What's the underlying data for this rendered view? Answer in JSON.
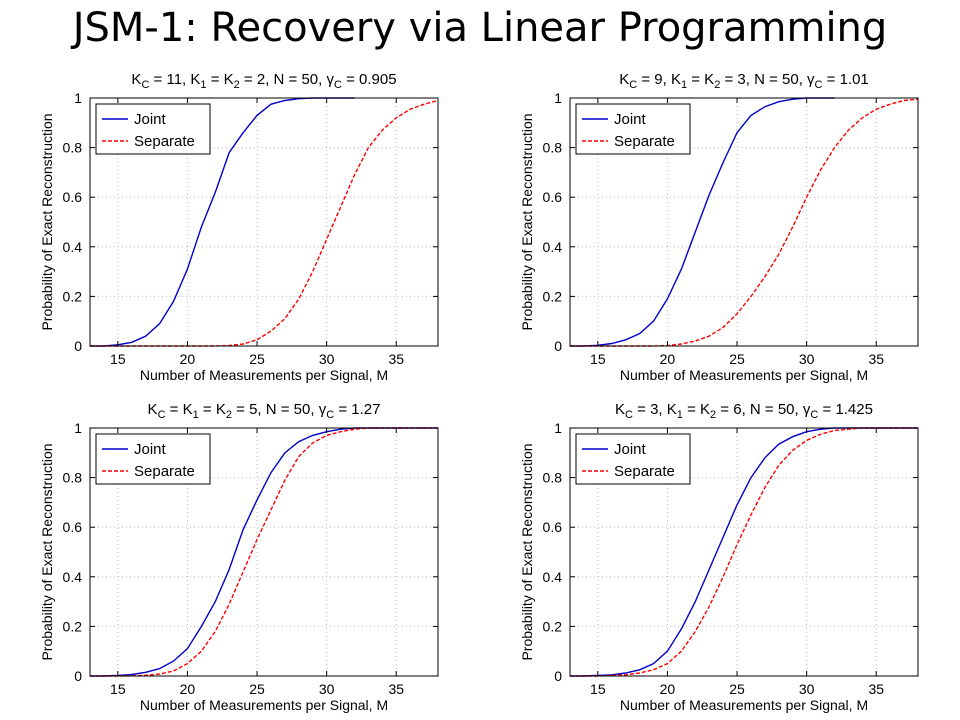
{
  "slide": {
    "title": "JSM-1: Recovery via Linear Programming"
  },
  "colors": {
    "joint": "#0000cc",
    "separate": "#ff0000",
    "grid": "#bbbbbb"
  },
  "chart_data": [
    {
      "type": "line",
      "title": {
        "pre": "K",
        "sub1": "C",
        "mid1": " = 11, K",
        "sub2": "1",
        "mid2": " = K",
        "sub3": "2",
        "mid3": " = 2, N = 50, ",
        "gamma": "γ",
        "sub4": "C",
        "post": " = 0.905"
      },
      "xlabel": "Number of Measurements per Signal, M",
      "ylabel": "Probability of Exact Reconstruction",
      "xlim": [
        13,
        38
      ],
      "ylim": [
        0,
        1
      ],
      "xticks": [
        15,
        20,
        25,
        30,
        35
      ],
      "yticks": [
        0,
        0.2,
        0.4,
        0.6,
        0.8,
        1
      ],
      "grid": true,
      "legend_position": "top-left",
      "series": [
        {
          "name": "Joint",
          "style": "solid",
          "x": [
            13,
            14,
            15,
            16,
            17,
            18,
            19,
            20,
            21,
            22,
            23,
            24,
            25,
            26,
            27,
            28,
            29,
            30,
            31,
            32
          ],
          "y": [
            0,
            0,
            0.005,
            0.015,
            0.04,
            0.09,
            0.18,
            0.31,
            0.48,
            0.62,
            0.78,
            0.86,
            0.93,
            0.975,
            0.99,
            0.997,
            1,
            1,
            1,
            1
          ]
        },
        {
          "name": "Separate",
          "style": "dashed",
          "x": [
            13,
            14,
            15,
            16,
            17,
            18,
            19,
            20,
            21,
            22,
            23,
            24,
            25,
            26,
            27,
            28,
            29,
            30,
            31,
            32,
            33,
            34,
            35,
            36,
            37,
            38
          ],
          "y": [
            0,
            0,
            0,
            0,
            0,
            0,
            0,
            0,
            0,
            0,
            0.002,
            0.008,
            0.025,
            0.06,
            0.11,
            0.19,
            0.3,
            0.43,
            0.56,
            0.69,
            0.8,
            0.87,
            0.92,
            0.955,
            0.975,
            0.99
          ]
        }
      ]
    },
    {
      "type": "line",
      "title": {
        "pre": "K",
        "sub1": "C",
        "mid1": " = 9, K",
        "sub2": "1",
        "mid2": " = K",
        "sub3": "2",
        "mid3": " = 3, N = 50, ",
        "gamma": "γ",
        "sub4": "C",
        "post": " = 1.01"
      },
      "xlabel": "Number of Measurements per Signal, M",
      "ylabel": "Probability of Exact Reconstruction",
      "xlim": [
        13,
        38
      ],
      "ylim": [
        0,
        1
      ],
      "xticks": [
        15,
        20,
        25,
        30,
        35
      ],
      "yticks": [
        0,
        0.2,
        0.4,
        0.6,
        0.8,
        1
      ],
      "grid": true,
      "legend_position": "top-left",
      "series": [
        {
          "name": "Joint",
          "style": "solid",
          "x": [
            13,
            14,
            15,
            16,
            17,
            18,
            19,
            20,
            21,
            22,
            23,
            24,
            25,
            26,
            27,
            28,
            29,
            30,
            31,
            32
          ],
          "y": [
            0,
            0,
            0.003,
            0.01,
            0.025,
            0.05,
            0.1,
            0.19,
            0.31,
            0.46,
            0.61,
            0.74,
            0.86,
            0.93,
            0.965,
            0.985,
            0.995,
            1,
            1,
            1
          ]
        },
        {
          "name": "Separate",
          "style": "dashed",
          "x": [
            13,
            14,
            15,
            16,
            17,
            18,
            19,
            20,
            21,
            22,
            23,
            24,
            25,
            26,
            27,
            28,
            29,
            30,
            31,
            32,
            33,
            34,
            35,
            36,
            37,
            38
          ],
          "y": [
            0,
            0,
            0,
            0,
            0,
            0,
            0,
            0.002,
            0.008,
            0.02,
            0.04,
            0.075,
            0.13,
            0.2,
            0.28,
            0.37,
            0.48,
            0.6,
            0.71,
            0.8,
            0.87,
            0.92,
            0.955,
            0.975,
            0.99,
            0.995
          ]
        }
      ]
    },
    {
      "type": "line",
      "title": {
        "pre": "K",
        "sub1": "C",
        "mid1": " = K",
        "sub2": "1",
        "mid2": " = K",
        "sub3": "2",
        "mid3": " = 5, N = 50, ",
        "gamma": "γ",
        "sub4": "C",
        "post": " = 1.27"
      },
      "xlabel": "Number of Measurements per Signal, M",
      "ylabel": "Probability of Exact Reconstruction",
      "xlim": [
        13,
        38
      ],
      "ylim": [
        0,
        1
      ],
      "xticks": [
        15,
        20,
        25,
        30,
        35
      ],
      "yticks": [
        0,
        0.2,
        0.4,
        0.6,
        0.8,
        1
      ],
      "grid": true,
      "legend_position": "top-left",
      "series": [
        {
          "name": "Joint",
          "style": "solid",
          "x": [
            13,
            14,
            15,
            16,
            17,
            18,
            19,
            20,
            21,
            22,
            23,
            24,
            25,
            26,
            27,
            28,
            29,
            30,
            31,
            32,
            33,
            34,
            35,
            36,
            37,
            38
          ],
          "y": [
            0,
            0,
            0.002,
            0.006,
            0.015,
            0.03,
            0.06,
            0.11,
            0.2,
            0.3,
            0.43,
            0.59,
            0.71,
            0.82,
            0.9,
            0.945,
            0.97,
            0.985,
            0.995,
            1,
            1,
            1,
            1,
            1,
            1,
            1
          ]
        },
        {
          "name": "Separate",
          "style": "dashed",
          "x": [
            13,
            14,
            15,
            16,
            17,
            18,
            19,
            20,
            21,
            22,
            23,
            24,
            25,
            26,
            27,
            28,
            29,
            30,
            31,
            32,
            33,
            34,
            35,
            36,
            37,
            38
          ],
          "y": [
            0,
            0,
            0,
            0.001,
            0.003,
            0.008,
            0.02,
            0.05,
            0.1,
            0.18,
            0.29,
            0.42,
            0.55,
            0.67,
            0.79,
            0.885,
            0.94,
            0.97,
            0.985,
            0.995,
            1,
            1,
            1,
            1,
            1,
            1
          ]
        }
      ]
    },
    {
      "type": "line",
      "title": {
        "pre": "K",
        "sub1": "C",
        "mid1": " = 3, K",
        "sub2": "1",
        "mid2": " = K",
        "sub3": "2",
        "mid3": " = 6, N = 50, ",
        "gamma": "γ",
        "sub4": "C",
        "post": " = 1.425"
      },
      "xlabel": "Number of Measurements per Signal, M",
      "ylabel": "Probability of Exact Reconstruction",
      "xlim": [
        13,
        38
      ],
      "ylim": [
        0,
        1
      ],
      "xticks": [
        15,
        20,
        25,
        30,
        35
      ],
      "yticks": [
        0,
        0.2,
        0.4,
        0.6,
        0.8,
        1
      ],
      "grid": true,
      "legend_position": "top-left",
      "series": [
        {
          "name": "Joint",
          "style": "solid",
          "x": [
            13,
            14,
            15,
            16,
            17,
            18,
            19,
            20,
            21,
            22,
            23,
            24,
            25,
            26,
            27,
            28,
            29,
            30,
            31,
            32,
            33,
            34,
            35,
            36,
            37,
            38
          ],
          "y": [
            0,
            0,
            0.002,
            0.005,
            0.012,
            0.025,
            0.05,
            0.1,
            0.19,
            0.3,
            0.43,
            0.56,
            0.69,
            0.8,
            0.88,
            0.935,
            0.965,
            0.985,
            0.995,
            1,
            1,
            1,
            1,
            1,
            1,
            1
          ]
        },
        {
          "name": "Separate",
          "style": "dashed",
          "x": [
            13,
            14,
            15,
            16,
            17,
            18,
            19,
            20,
            21,
            22,
            23,
            24,
            25,
            26,
            27,
            28,
            29,
            30,
            31,
            32,
            33,
            34,
            35,
            36,
            37,
            38
          ],
          "y": [
            0,
            0,
            0,
            0.002,
            0.005,
            0.012,
            0.025,
            0.05,
            0.1,
            0.18,
            0.28,
            0.4,
            0.53,
            0.65,
            0.76,
            0.85,
            0.91,
            0.95,
            0.975,
            0.99,
            0.995,
            1,
            1,
            1,
            1,
            1
          ]
        }
      ]
    }
  ]
}
